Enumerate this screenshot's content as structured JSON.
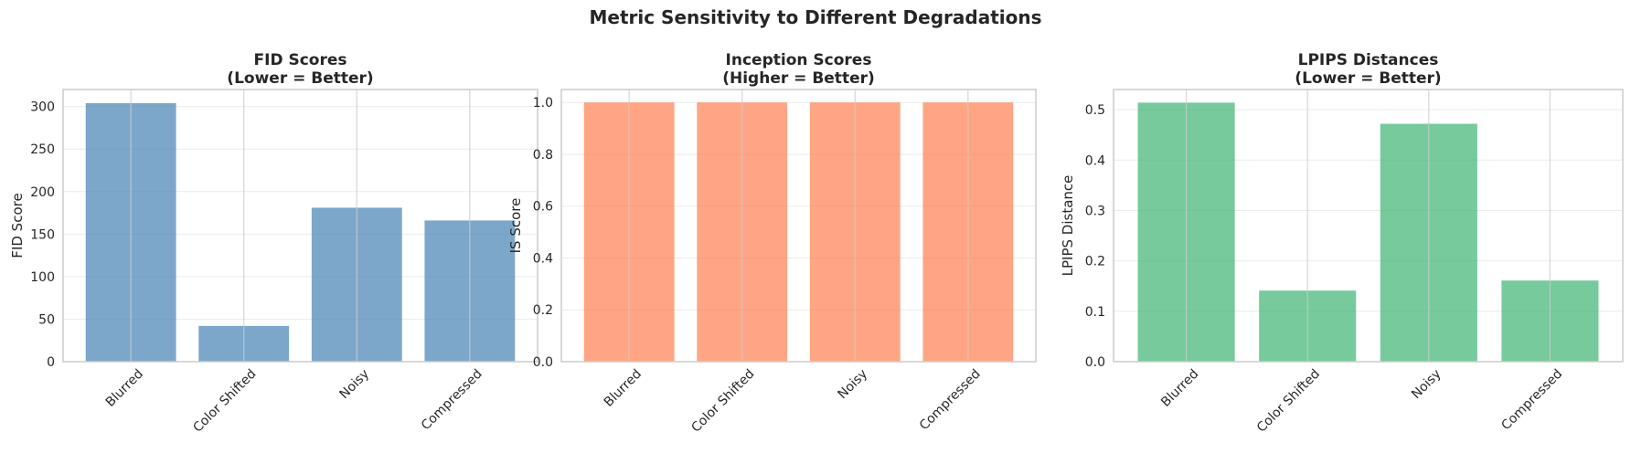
{
  "suptitle": "Metric Sensitivity to Different Degradations",
  "chart_data": [
    {
      "type": "bar",
      "title": "FID Scores\n(Lower = Better)",
      "xlabel": "",
      "ylabel": "FID Score",
      "categories": [
        "Blurred",
        "Color Shifted",
        "Noisy",
        "Compressed"
      ],
      "values": [
        304,
        42,
        181,
        166
      ],
      "ylim": [
        0,
        320
      ],
      "yticks": [
        0,
        50,
        100,
        150,
        200,
        250,
        300
      ],
      "ytick_labels": [
        "0",
        "50",
        "100",
        "150",
        "200",
        "250",
        "300"
      ],
      "color": "#4682B4",
      "grid": true
    },
    {
      "type": "bar",
      "title": "Inception Scores\n(Higher = Better)",
      "xlabel": "",
      "ylabel": "IS Score",
      "categories": [
        "Blurred",
        "Color Shifted",
        "Noisy",
        "Compressed"
      ],
      "values": [
        1.0,
        1.0,
        1.0,
        1.0
      ],
      "ylim": [
        0,
        1.05
      ],
      "yticks": [
        0,
        0.2,
        0.4,
        0.6,
        0.8,
        1.0
      ],
      "ytick_labels": [
        "0.0",
        "0.2",
        "0.4",
        "0.6",
        "0.8",
        "1.0"
      ],
      "color": "#FF7F50",
      "grid": true
    },
    {
      "type": "bar",
      "title": "LPIPS Distances\n(Lower = Better)",
      "xlabel": "",
      "ylabel": "LPIPS Distance",
      "categories": [
        "Blurred",
        "Color Shifted",
        "Noisy",
        "Compressed"
      ],
      "values": [
        0.514,
        0.141,
        0.472,
        0.161
      ],
      "ylim": [
        0,
        0.54
      ],
      "yticks": [
        0,
        0.1,
        0.2,
        0.3,
        0.4,
        0.5
      ],
      "ytick_labels": [
        "0.0",
        "0.1",
        "0.2",
        "0.3",
        "0.4",
        "0.5"
      ],
      "color": "#3CB371",
      "grid": true
    }
  ]
}
